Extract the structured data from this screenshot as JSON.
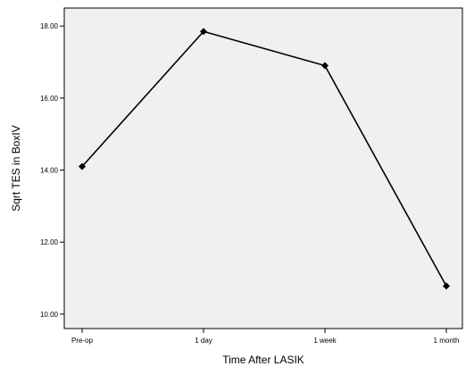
{
  "chart_data": {
    "type": "line",
    "title": "",
    "xlabel": "Time After LASIK",
    "ylabel": "Sqrt TES in BoxIV",
    "categories": [
      "Pre-op",
      "1 day",
      "1 week",
      "1 month"
    ],
    "series": [
      {
        "values": [
          14.1,
          17.85,
          16.9,
          10.78
        ]
      }
    ],
    "ylim": [
      9.6,
      18.5
    ],
    "yticks": [
      10.0,
      12.0,
      14.0,
      16.0,
      18.0
    ],
    "ytick_labels": [
      "10.00",
      "12.00",
      "14.00",
      "16.00",
      "18.00"
    ],
    "grid": false,
    "legend": "none",
    "colors": {
      "plot_background": "#f0f0f0",
      "line": "#000000",
      "marker": "#000000"
    },
    "marker": "diamond"
  }
}
